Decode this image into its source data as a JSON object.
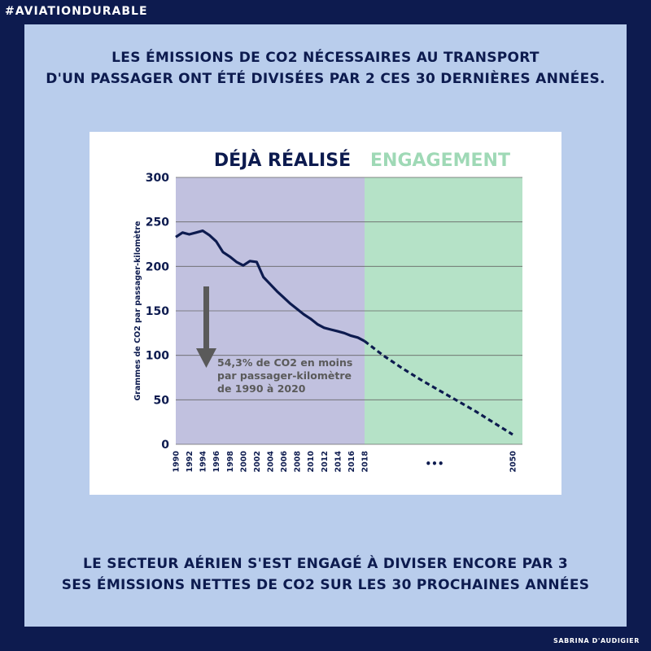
{
  "hashtag": "#AVIATIONDURABLE",
  "headline_top": [
    "LES ÉMISSIONS DE CO2 NÉCESSAIRES AU TRANSPORT",
    "D'UN PASSAGER ONT ÉTÉ DIVISÉES PAR 2 CES 30 DERNIÈRES ANNÉES."
  ],
  "headline_bottom": [
    "LE SECTEUR AÉRIEN S'EST ENGAGÉ À DIVISER ENCORE PAR 3",
    "SES ÉMISSIONS NETTES DE CO2 SUR LES 30 PROCHAINES ANNÉES"
  ],
  "author": "SABRINA D'AUDIGIER",
  "colors": {
    "frame": "#0d1b4f",
    "panel": "#b9cdec",
    "realise_zone": "#c1c1df",
    "engagement_zone": "#b5e2c7",
    "engagement_text": "#9fd9b6",
    "line": "#0d1b4f",
    "arrow": "#5a5a5a",
    "annotation": "#5a5a5a"
  },
  "chart_data": {
    "type": "line",
    "zone_labels": {
      "realise": "DÉJÀ RÉALISÉ",
      "engagement": "ENGAGEMENT"
    },
    "ylabel": "Grammes de CO2 par passager-kilomètre",
    "yticks": [
      "0",
      "50",
      "100",
      "150",
      "200",
      "250",
      "300"
    ],
    "ylim": [
      0,
      300
    ],
    "xticks": [
      "1990",
      "1992",
      "1994",
      "1996",
      "1998",
      "2000",
      "2002",
      "2004",
      "2006",
      "2008",
      "2010",
      "2012",
      "2014",
      "2016",
      "2018"
    ],
    "xtick_far": "2050",
    "ellipsis": "•••",
    "grid": true,
    "series": [
      {
        "style": "solid",
        "x": [
          1990,
          1991,
          1992,
          1993,
          1994,
          1995,
          1996,
          1997,
          1998,
          1999,
          2000,
          2001,
          2002,
          2003,
          2004,
          2005,
          2006,
          2007,
          2008,
          2009,
          2010,
          2011,
          2012,
          2013,
          2014,
          2015,
          2016,
          2017,
          2018
        ],
        "y": [
          233,
          238,
          236,
          238,
          240,
          235,
          228,
          216,
          211,
          205,
          201,
          206,
          205,
          188,
          180,
          172,
          165,
          158,
          152,
          146,
          141,
          135,
          131,
          129,
          127,
          125,
          122,
          120,
          116
        ]
      },
      {
        "style": "dashed",
        "x": [
          2018,
          2022,
          2026,
          2030,
          2034,
          2038,
          2042,
          2046,
          2050
        ],
        "y": [
          116,
          100,
          86,
          73,
          61,
          49,
          37,
          24,
          11
        ]
      }
    ],
    "annotation": {
      "lines": [
        "54,3% de CO2 en moins",
        "par passager-kilomètre",
        "de 1990 à 2020"
      ]
    }
  }
}
